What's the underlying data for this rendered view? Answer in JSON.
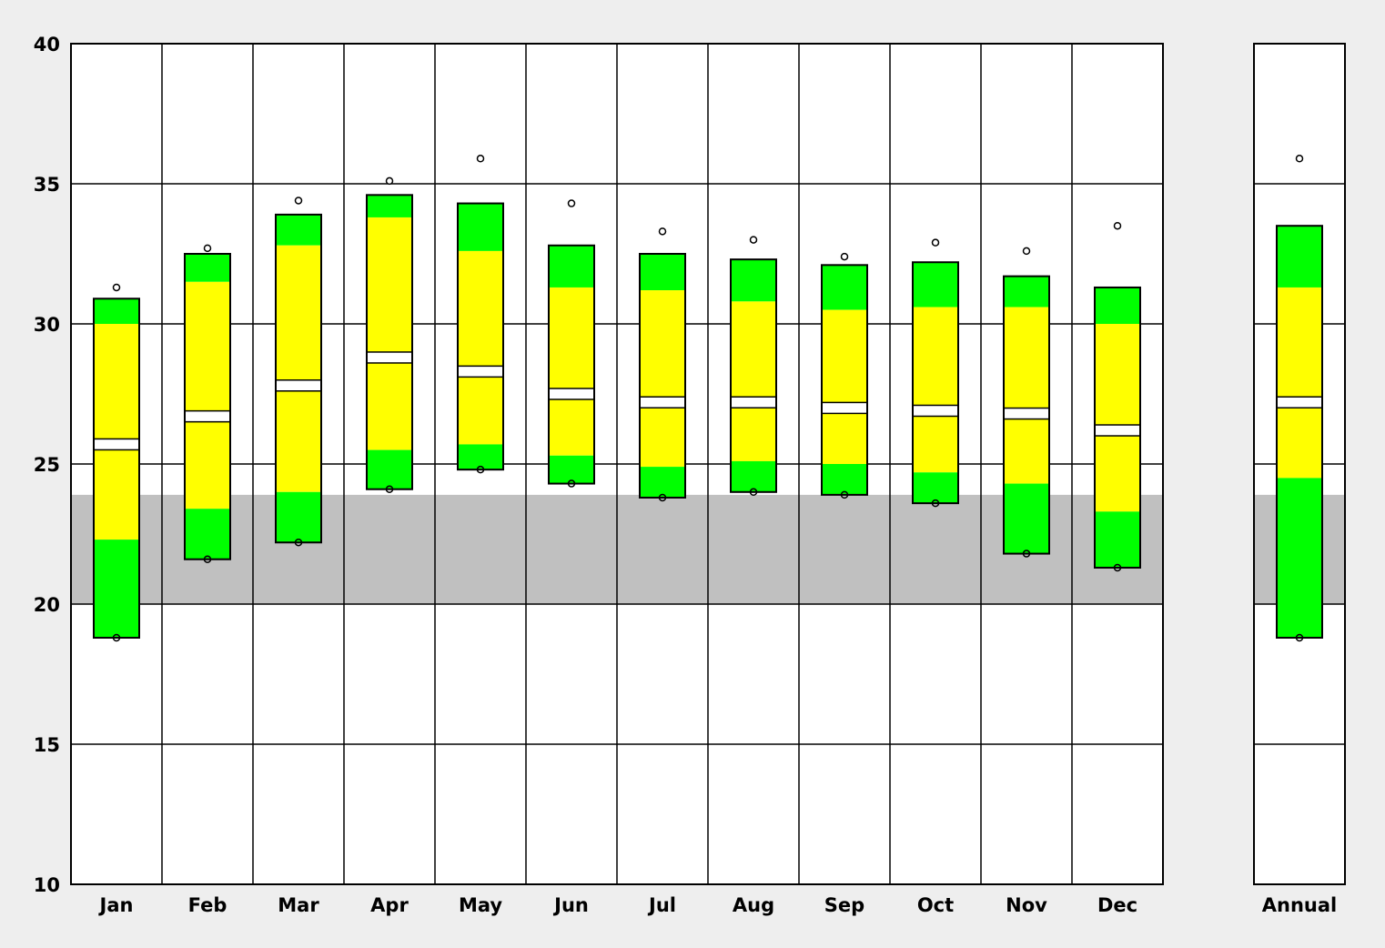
{
  "chart_data": {
    "type": "box",
    "xlabel": "",
    "ylabel": "",
    "ylim": [
      10,
      40
    ],
    "yticks": [
      10,
      15,
      20,
      25,
      30,
      35,
      40
    ],
    "grid": true,
    "shaded_band": {
      "from": 20,
      "to": 23.9,
      "color": "#c0c0c0"
    },
    "colors": {
      "outer": "#00ff00",
      "inner": "#ffff00",
      "median": "#ffffff",
      "plot_bg": "#ffffff",
      "page_bg": "#eeeeee",
      "stroke": "#000000"
    },
    "categories": [
      "Jan",
      "Feb",
      "Mar",
      "Apr",
      "May",
      "Jun",
      "Jul",
      "Aug",
      "Sep",
      "Oct",
      "Nov",
      "Dec"
    ],
    "monthly": [
      {
        "label": "Jan",
        "min": 18.8,
        "p10": 18.8,
        "p25": 22.3,
        "median": 25.7,
        "p75": 30.0,
        "p90": 30.9,
        "max": 31.3
      },
      {
        "label": "Feb",
        "min": 21.6,
        "p10": 21.6,
        "p25": 23.4,
        "median": 26.7,
        "p75": 31.5,
        "p90": 32.5,
        "max": 32.7
      },
      {
        "label": "Mar",
        "min": 22.2,
        "p10": 22.2,
        "p25": 24.0,
        "median": 27.8,
        "p75": 32.8,
        "p90": 33.9,
        "max": 34.4
      },
      {
        "label": "Apr",
        "min": 24.1,
        "p10": 24.1,
        "p25": 25.5,
        "median": 28.8,
        "p75": 33.8,
        "p90": 34.6,
        "max": 35.1
      },
      {
        "label": "May",
        "min": 24.8,
        "p10": 24.8,
        "p25": 25.7,
        "median": 28.3,
        "p75": 32.6,
        "p90": 34.3,
        "max": 35.9
      },
      {
        "label": "Jun",
        "min": 24.3,
        "p10": 24.3,
        "p25": 25.3,
        "median": 27.5,
        "p75": 31.3,
        "p90": 32.8,
        "max": 34.3
      },
      {
        "label": "Jul",
        "min": 23.8,
        "p10": 23.8,
        "p25": 24.9,
        "median": 27.2,
        "p75": 31.2,
        "p90": 32.5,
        "max": 33.3
      },
      {
        "label": "Aug",
        "min": 24.0,
        "p10": 24.0,
        "p25": 25.1,
        "median": 27.2,
        "p75": 30.8,
        "p90": 32.3,
        "max": 33.0
      },
      {
        "label": "Sep",
        "min": 23.9,
        "p10": 23.9,
        "p25": 25.0,
        "median": 27.0,
        "p75": 30.5,
        "p90": 32.1,
        "max": 32.4
      },
      {
        "label": "Oct",
        "min": 23.6,
        "p10": 23.6,
        "p25": 24.7,
        "median": 26.9,
        "p75": 30.6,
        "p90": 32.2,
        "max": 32.9
      },
      {
        "label": "Nov",
        "min": 21.8,
        "p10": 21.8,
        "p25": 24.3,
        "median": 26.8,
        "p75": 30.6,
        "p90": 31.7,
        "max": 32.6
      },
      {
        "label": "Dec",
        "min": 21.3,
        "p10": 21.3,
        "p25": 23.3,
        "median": 26.2,
        "p75": 30.0,
        "p90": 31.3,
        "max": 33.5
      }
    ],
    "annual": {
      "label": "Annual",
      "min": 18.8,
      "p10": 18.8,
      "p25": 24.5,
      "median": 27.2,
      "p75": 31.3,
      "p90": 33.5,
      "max": 35.9
    }
  }
}
